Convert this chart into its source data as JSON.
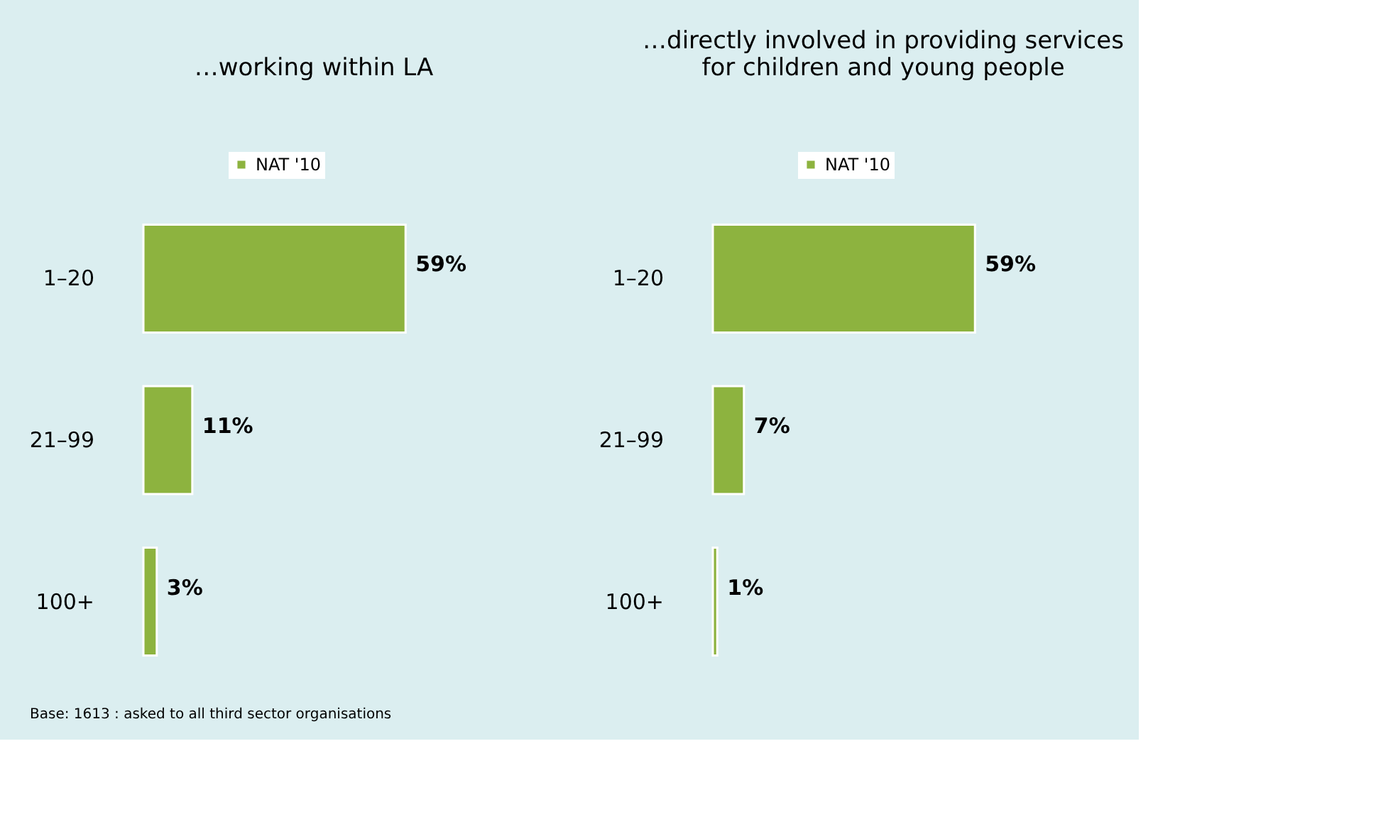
{
  "chart_data": [
    {
      "type": "bar",
      "orientation": "horizontal",
      "title": "…working within LA",
      "categories": [
        "1–20",
        "21–99",
        "100+"
      ],
      "series": [
        {
          "name": "NAT '10",
          "color": "#8db33f",
          "values": [
            59,
            11,
            3
          ],
          "value_labels": [
            "59%",
            "11%",
            "3%"
          ]
        }
      ],
      "tick_labels": "y",
      "legend": "top",
      "grid": false,
      "annotations": [
        "Base: 1613 : asked to all third sector organisations"
      ]
    },
    {
      "type": "bar",
      "orientation": "horizontal",
      "title": "…directly involved in providing services\nfor children and young people",
      "categories": [
        "1–20",
        "21–99",
        "100+"
      ],
      "series": [
        {
          "name": "NAT '10",
          "color": "#8db33f",
          "values": [
            59,
            7,
            1
          ],
          "value_labels": [
            "59%",
            "7%",
            "1%"
          ]
        }
      ],
      "tick_labels": "y",
      "legend": "top",
      "grid": false
    }
  ]
}
